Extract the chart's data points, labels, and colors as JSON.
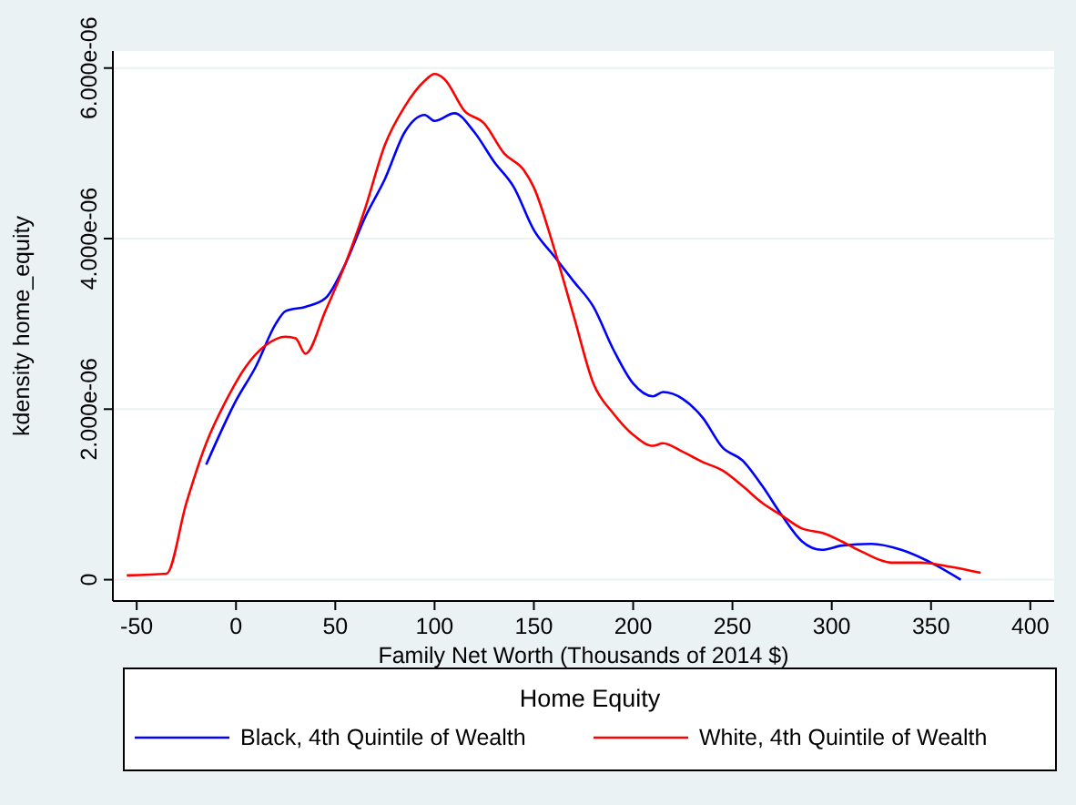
{
  "chart_data": {
    "type": "line",
    "xlabel": "Family Net Worth (Thousands of 2014 $)",
    "ylabel": "kdensity home_equity",
    "legend_title": "Home Equity",
    "legend": "bottom",
    "grid": "y",
    "marker": "none",
    "line_style": "solid",
    "xlim": [
      -62,
      412
    ],
    "xticks": [
      -50,
      0,
      50,
      100,
      150,
      200,
      250,
      300,
      350,
      400
    ],
    "ylim": [
      -2.5e-07,
      6.2e-06
    ],
    "yticks": [
      0,
      {
        "value": 2e-06,
        "label": "2.000e-06"
      },
      {
        "value": 4e-06,
        "label": "4.000e-06"
      },
      {
        "value": 6e-06,
        "label": "6.000e-06"
      }
    ],
    "series": [
      {
        "name": "Black, 4th Quintile of Wealth",
        "color": "#0000ff",
        "x": [
          -15,
          0,
          10,
          20,
          25,
          35,
          45,
          55,
          65,
          75,
          85,
          95,
          100,
          110,
          120,
          130,
          140,
          150,
          160,
          170,
          180,
          190,
          200,
          210,
          215,
          225,
          235,
          245,
          255,
          265,
          275,
          285,
          295,
          305,
          320,
          335,
          350,
          365
        ],
        "values": [
          1.35e-06,
          2.1e-06,
          2.5e-06,
          3e-06,
          3.15e-06,
          3.2e-06,
          3.3e-06,
          3.7e-06,
          4.25e-06,
          4.7e-06,
          5.25e-06,
          5.45e-06,
          5.38e-06,
          5.47e-06,
          5.25e-06,
          4.9e-06,
          4.6e-06,
          4.1e-06,
          3.8e-06,
          3.5e-06,
          3.2e-06,
          2.7e-06,
          2.3e-06,
          2.15e-06,
          2.2e-06,
          2.12e-06,
          1.9e-06,
          1.55e-06,
          1.4e-06,
          1.1e-06,
          7.5e-07,
          4.5e-07,
          3.5e-07,
          4e-07,
          4.2e-07,
          3.5e-07,
          2e-07,
          0
        ]
      },
      {
        "name": "White, 4th Quintile of Wealth",
        "color": "#ff0000",
        "x": [
          -55,
          -35,
          -25,
          -15,
          -5,
          5,
          15,
          25,
          30,
          35,
          45,
          55,
          65,
          75,
          85,
          95,
          100,
          105,
          115,
          125,
          135,
          145,
          150,
          160,
          170,
          180,
          190,
          200,
          210,
          215,
          225,
          235,
          245,
          255,
          265,
          275,
          285,
          295,
          305,
          315,
          330,
          345,
          360,
          375
        ],
        "values": [
          5e-08,
          7e-08,
          9e-07,
          1.6e-06,
          2.1e-06,
          2.5e-06,
          2.75e-06,
          2.85e-06,
          2.83e-06,
          2.65e-06,
          3.15e-06,
          3.7e-06,
          4.35e-06,
          5.1e-06,
          5.55e-06,
          5.85e-06,
          5.93e-06,
          5.87e-06,
          5.5e-06,
          5.35e-06,
          5e-06,
          4.8e-06,
          4.6e-06,
          3.9e-06,
          3.1e-06,
          2.3e-06,
          1.95e-06,
          1.7e-06,
          1.57e-06,
          1.6e-06,
          1.5e-06,
          1.38e-06,
          1.28e-06,
          1.1e-06,
          9e-07,
          7.5e-07,
          6e-07,
          5.5e-07,
          4.5e-07,
          3.3e-07,
          2e-07,
          2e-07,
          1.5e-07,
          8e-08
        ]
      }
    ]
  }
}
